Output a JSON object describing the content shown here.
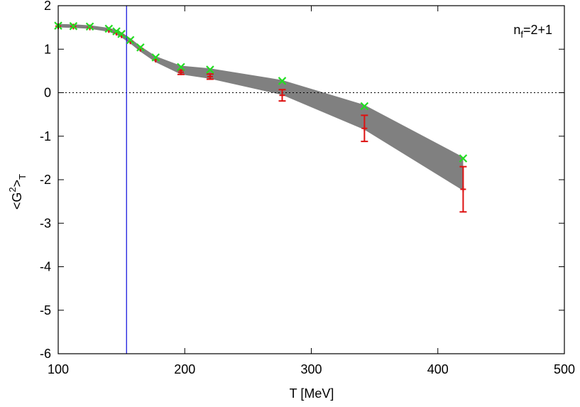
{
  "chart_data": {
    "type": "scatter",
    "xlabel": "T [MeV]",
    "ylabel_parts": {
      "main": "<G",
      "sup": "2",
      "close": ">",
      "sub": "T"
    },
    "xlim": [
      100,
      500
    ],
    "ylim": [
      -6,
      2
    ],
    "xticks": [
      100,
      200,
      300,
      400,
      500
    ],
    "yticks": [
      -6,
      -5,
      -4,
      -3,
      -2,
      -1,
      0,
      1,
      2
    ],
    "annotation": {
      "base": "n",
      "sub": "f",
      "rest": "=2+1"
    },
    "zero_line": true,
    "vertical_line_x": 154,
    "band": {
      "color": "#808080",
      "x": [
        100,
        112,
        125,
        140,
        146,
        150,
        157,
        165,
        177,
        197,
        220,
        277,
        342,
        420
      ],
      "upper": [
        1.58,
        1.57,
        1.55,
        1.49,
        1.44,
        1.39,
        1.25,
        1.07,
        0.84,
        0.62,
        0.56,
        0.29,
        -0.28,
        -1.48
      ],
      "lower": [
        1.5,
        1.49,
        1.47,
        1.4,
        1.33,
        1.27,
        1.13,
        0.94,
        0.7,
        0.42,
        0.32,
        -0.05,
        -0.85,
        -2.25
      ]
    },
    "series": [
      {
        "marker": "plus",
        "color": "#dd1111",
        "x": [
          100,
          112,
          125,
          140,
          146,
          150,
          157,
          165,
          177,
          197,
          220,
          277,
          342,
          420
        ],
        "y": [
          1.53,
          1.52,
          1.5,
          1.44,
          1.38,
          1.32,
          1.18,
          1.01,
          0.76,
          0.47,
          0.37,
          -0.06,
          -0.82,
          -2.22
        ],
        "yerr": [
          0.02,
          0.02,
          0.02,
          0.02,
          0.02,
          0.02,
          0.02,
          0.03,
          0.04,
          0.05,
          0.06,
          0.13,
          0.3,
          0.52
        ]
      },
      {
        "marker": "cross",
        "color": "#22dd22",
        "x": [
          100,
          112,
          125,
          140,
          146,
          150,
          157,
          165,
          177,
          197,
          220,
          277,
          342,
          420
        ],
        "y": [
          1.54,
          1.53,
          1.52,
          1.47,
          1.41,
          1.35,
          1.21,
          1.04,
          0.81,
          0.59,
          0.53,
          0.27,
          -0.31,
          -1.51
        ]
      }
    ]
  }
}
